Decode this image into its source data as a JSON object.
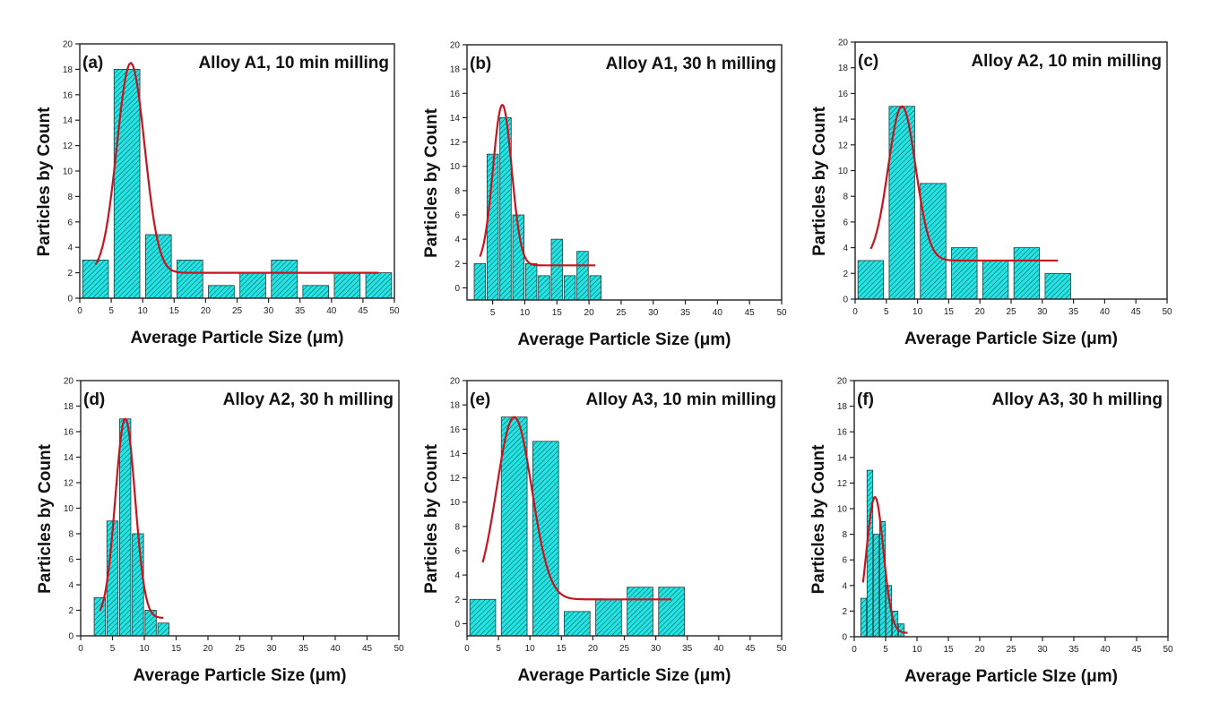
{
  "colors": {
    "bar_fill": "#22e6e6",
    "bar_hatch": "#1a4a4a",
    "bar_edge": "#1f3a3a",
    "fit_line": "#c8141e",
    "axis": "#222222"
  },
  "chart_data": [
    {
      "type": "bar",
      "panel": "(a)",
      "title": "Alloy A1, 10 min milling",
      "xlabel": "Average Particle Size (μm)",
      "ylabel": "Particles by Count",
      "xlim": [
        0,
        50
      ],
      "ylim": [
        0,
        20
      ],
      "xticks": [
        0,
        5,
        10,
        15,
        20,
        25,
        30,
        35,
        40,
        45,
        50
      ],
      "yticks": [
        0,
        2,
        4,
        6,
        8,
        10,
        12,
        14,
        16,
        18,
        20
      ],
      "bin_width": 5,
      "x": [
        2.5,
        7.5,
        12.5,
        17.5,
        22.5,
        27.5,
        32.5,
        37.5,
        42.5,
        47.5
      ],
      "values": [
        3,
        18,
        5,
        3,
        1,
        2,
        3,
        1,
        2,
        2
      ],
      "fit": {
        "type": "gaussian",
        "baseline": 2,
        "amplitude": 16.5,
        "center": 8.1,
        "sigma": 2.2,
        "x_range": [
          2.5,
          47.5
        ]
      }
    },
    {
      "type": "bar",
      "panel": "(b)",
      "title": "Alloy A1, 30 h milling",
      "xlabel": "Average Particle Size (μm)",
      "ylabel": "Particles by Count",
      "xlim": [
        1,
        50
      ],
      "ylim": [
        -1,
        20
      ],
      "xticks": [
        5,
        10,
        15,
        20,
        25,
        30,
        35,
        40,
        45,
        50
      ],
      "yticks": [
        0,
        2,
        4,
        6,
        8,
        10,
        12,
        14,
        16,
        18,
        20
      ],
      "bin_width": 2,
      "x": [
        3,
        5,
        7,
        9,
        11,
        13,
        15,
        17,
        19,
        21
      ],
      "values": [
        2,
        11,
        14,
        6,
        2,
        1,
        4,
        1,
        3,
        1
      ],
      "fit": {
        "type": "gaussian",
        "baseline": 1.85,
        "amplitude": 13.2,
        "center": 6.5,
        "sigma": 1.45,
        "x_range": [
          3,
          21
        ]
      }
    },
    {
      "type": "bar",
      "panel": "(c)",
      "title": "Alloy A2, 10 min milling",
      "xlabel": "Average Particle Size (μm)",
      "ylabel": "Particles by Count",
      "xlim": [
        0,
        50
      ],
      "ylim": [
        0,
        20
      ],
      "xticks": [
        0,
        5,
        10,
        15,
        20,
        25,
        30,
        35,
        40,
        45,
        50
      ],
      "yticks": [
        0,
        2,
        4,
        6,
        8,
        10,
        12,
        14,
        16,
        18,
        20
      ],
      "bin_width": 5,
      "x": [
        2.5,
        7.5,
        12.5,
        17.5,
        22.5,
        27.5,
        32.5
      ],
      "values": [
        3,
        15,
        9,
        4,
        3,
        4,
        2
      ],
      "fit": {
        "type": "gaussian",
        "baseline": 3,
        "amplitude": 12,
        "center": 7.5,
        "sigma": 2.2,
        "x_range": [
          2.5,
          32.5
        ]
      }
    },
    {
      "type": "bar",
      "panel": "(d)",
      "title": "Alloy A2, 30 h milling",
      "xlabel": "Average Particle Size (μm)",
      "ylabel": "Particles by Count",
      "xlim": [
        0,
        50
      ],
      "ylim": [
        0,
        20
      ],
      "xticks": [
        0,
        5,
        10,
        15,
        20,
        25,
        30,
        35,
        40,
        45,
        50
      ],
      "yticks": [
        0,
        2,
        4,
        6,
        8,
        10,
        12,
        14,
        16,
        18,
        20
      ],
      "bin_width": 2,
      "x": [
        3,
        5,
        7,
        9,
        11,
        13
      ],
      "values": [
        3,
        9,
        17,
        8,
        2,
        1
      ],
      "fit": {
        "type": "gaussian",
        "baseline": 1.4,
        "amplitude": 15.6,
        "center": 7,
        "sigma": 1.55,
        "x_range": [
          3,
          13
        ]
      }
    },
    {
      "type": "bar",
      "panel": "(e)",
      "title": "Alloy A3, 10 min milling",
      "xlabel": "Average Particle Size (μm)",
      "ylabel": "Particles by Count",
      "xlim": [
        0,
        50
      ],
      "ylim": [
        -1,
        20
      ],
      "xticks": [
        0,
        5,
        10,
        15,
        20,
        25,
        30,
        35,
        40,
        45,
        50
      ],
      "yticks": [
        0,
        2,
        4,
        6,
        8,
        10,
        12,
        14,
        16,
        18,
        20
      ],
      "bin_width": 5,
      "x": [
        2.5,
        7.5,
        12.5,
        17.5,
        22.5,
        27.5,
        32.5
      ],
      "values": [
        2,
        17,
        15,
        1,
        2,
        3,
        3
      ],
      "fit": {
        "type": "gaussian",
        "baseline": 2,
        "amplitude": 15,
        "center": 7.5,
        "sigma": 2.8,
        "x_range": [
          2.5,
          32.5
        ]
      }
    },
    {
      "type": "bar",
      "panel": "(f)",
      "title": "Alloy A3, 30 h milling",
      "xlabel": "Average Particle SIze (μm)",
      "ylabel": "Particles by Count",
      "xlim": [
        0,
        50
      ],
      "ylim": [
        0,
        20
      ],
      "xticks": [
        0,
        5,
        10,
        15,
        20,
        25,
        30,
        35,
        40,
        45,
        50
      ],
      "yticks": [
        0,
        2,
        4,
        6,
        8,
        10,
        12,
        14,
        16,
        18,
        20
      ],
      "bin_width": 1,
      "x": [
        1.5,
        2.5,
        3.5,
        4.5,
        5.5,
        6.5,
        7.5
      ],
      "values": [
        3,
        13,
        8,
        9,
        4,
        2,
        1
      ],
      "fit": {
        "type": "gaussian",
        "baseline": 0.3,
        "amplitude": 10.6,
        "center": 3.3,
        "sigma": 1.35,
        "x_range": [
          1.4,
          8.5
        ]
      }
    }
  ]
}
